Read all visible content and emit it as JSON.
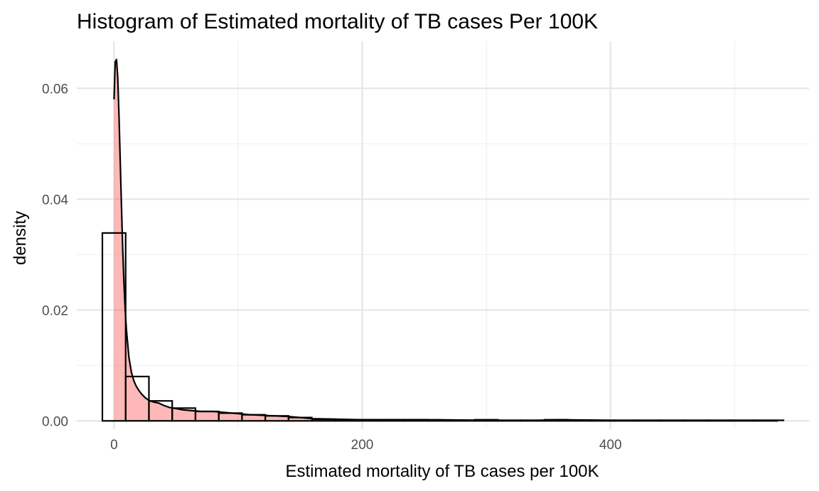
{
  "chart_data": {
    "type": "bar",
    "title": "Histogram of Estimated mortality of TB cases Per 100K",
    "xlabel": "Estimated mortality of TB cases per 100K",
    "ylabel": "density",
    "xlim": [
      -30,
      560
    ],
    "ylim": [
      -0.0015,
      0.0685
    ],
    "x_ticks": [
      0,
      200,
      400
    ],
    "x_minor_ticks": [
      100,
      300,
      500
    ],
    "y_ticks": [
      0.0,
      0.02,
      0.04,
      0.06
    ],
    "y_tick_labels": [
      "0.00",
      "0.02",
      "0.04",
      "0.06"
    ],
    "y_minor_ticks": [
      0.01,
      0.03,
      0.05
    ],
    "grid": true,
    "legend": "none",
    "histogram": {
      "binwidth": 18.75,
      "bin_starts": [
        -9.38,
        9.38,
        28.13,
        46.88,
        65.63,
        84.38,
        103.13,
        121.88,
        140.63,
        159.38,
        178.13,
        196.88,
        215.63,
        234.38,
        253.13,
        271.88,
        290.63,
        309.38,
        328.13,
        346.88,
        365.63,
        384.38,
        403.13,
        421.88,
        440.63,
        459.38,
        478.13,
        496.88,
        515.63
      ],
      "densities": [
        0.0339,
        0.008,
        0.0036,
        0.0023,
        0.0017,
        0.0014,
        0.0011,
        0.0009,
        0.0006,
        0.0003,
        0.0002,
        0.0002,
        0.0002,
        0.0002,
        0.0001,
        0.0001,
        0.0002,
        0.0001,
        0.0001,
        0.0002,
        0.0001,
        0.0001,
        0.0001,
        0.0001,
        0.0001,
        0.0001,
        0.0001,
        0.0001,
        0.0001
      ]
    },
    "density_curve": {
      "x": [
        0,
        1,
        2,
        3,
        4,
        5,
        6,
        7,
        8,
        9,
        10,
        12,
        14,
        16,
        18,
        20,
        22,
        25,
        28,
        32,
        36,
        40,
        45,
        50,
        55,
        60,
        70,
        80,
        90,
        100,
        110,
        120,
        130,
        140,
        150,
        160,
        180,
        200,
        230,
        260,
        300,
        340,
        360,
        400,
        450,
        500,
        540
      ],
      "y": [
        0.058,
        0.0648,
        0.0652,
        0.062,
        0.055,
        0.047,
        0.039,
        0.031,
        0.025,
        0.02,
        0.0165,
        0.0115,
        0.0088,
        0.0072,
        0.0062,
        0.0055,
        0.0049,
        0.0042,
        0.0037,
        0.0034,
        0.0032,
        0.0028,
        0.0024,
        0.0022,
        0.002,
        0.0019,
        0.0017,
        0.0017,
        0.0015,
        0.0013,
        0.0011,
        0.001,
        0.0009,
        0.0008,
        0.0006,
        0.0004,
        0.0003,
        0.0002,
        0.0002,
        0.0002,
        0.0001,
        0.0001,
        0.0002,
        0.0001,
        0.0001,
        0.0001,
        0.0001
      ]
    }
  }
}
